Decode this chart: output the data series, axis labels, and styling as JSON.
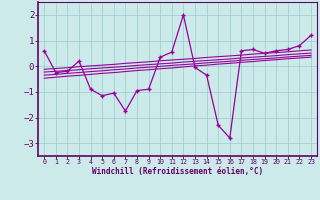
{
  "xlabel": "Windchill (Refroidissement éolien,°C)",
  "bg_color": "#cceaea",
  "line_color": "#990099",
  "marker_color": "#990099",
  "x": [
    0,
    1,
    2,
    3,
    4,
    5,
    6,
    7,
    8,
    9,
    10,
    11,
    12,
    13,
    14,
    15,
    16,
    17,
    18,
    19,
    20,
    21,
    22,
    23
  ],
  "y_main": [
    0.6,
    -0.25,
    -0.2,
    0.2,
    -0.9,
    -1.15,
    -1.05,
    -1.75,
    -0.95,
    -0.9,
    0.35,
    0.55,
    2.0,
    -0.05,
    -0.35,
    -2.3,
    -2.8,
    0.6,
    0.65,
    0.5,
    0.6,
    0.65,
    0.8,
    1.2
  ],
  "y_trend1": [
    -0.23,
    -0.2,
    -0.17,
    -0.14,
    -0.1,
    -0.07,
    -0.04,
    -0.01,
    0.03,
    0.06,
    0.09,
    0.12,
    0.16,
    0.19,
    0.22,
    0.25,
    0.28,
    0.32,
    0.35,
    0.38,
    0.41,
    0.45,
    0.48,
    0.51
  ],
  "y_trend2": [
    -0.35,
    -0.32,
    -0.28,
    -0.25,
    -0.21,
    -0.18,
    -0.14,
    -0.11,
    -0.07,
    -0.04,
    -0.01,
    0.03,
    0.06,
    0.09,
    0.13,
    0.16,
    0.19,
    0.23,
    0.26,
    0.29,
    0.32,
    0.36,
    0.39,
    0.42
  ],
  "y_trend3": [
    -0.12,
    -0.09,
    -0.06,
    -0.02,
    0.01,
    0.04,
    0.07,
    0.11,
    0.14,
    0.17,
    0.21,
    0.24,
    0.27,
    0.3,
    0.34,
    0.37,
    0.4,
    0.43,
    0.47,
    0.5,
    0.53,
    0.56,
    0.6,
    0.63
  ],
  "y_trend4": [
    -0.47,
    -0.43,
    -0.39,
    -0.36,
    -0.32,
    -0.28,
    -0.25,
    -0.21,
    -0.17,
    -0.14,
    -0.1,
    -0.07,
    -0.03,
    0.01,
    0.04,
    0.08,
    0.11,
    0.15,
    0.18,
    0.22,
    0.25,
    0.29,
    0.32,
    0.35
  ],
  "ylim": [
    -3.5,
    2.5
  ],
  "yticks": [
    -3,
    -2,
    -1,
    0,
    1,
    2
  ],
  "grid_color": "#99cccc",
  "font_color": "#660066",
  "axis_bg": "#cceaea",
  "border_color": "#660066"
}
